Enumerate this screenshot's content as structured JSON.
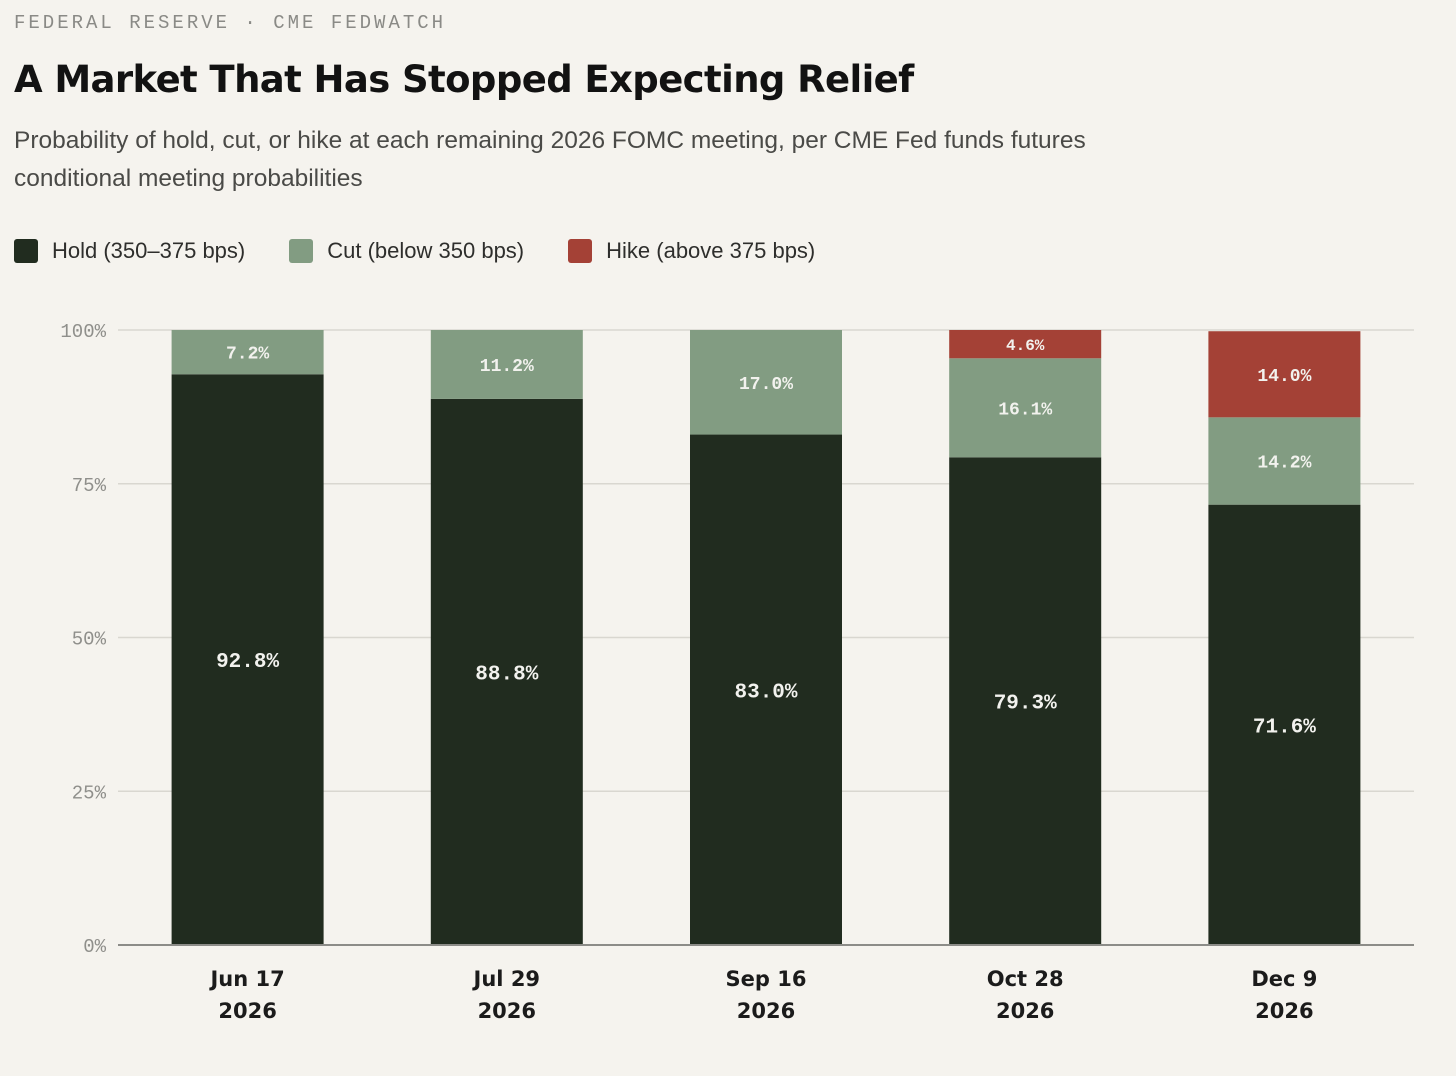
{
  "header": {
    "kicker": "FEDERAL RESERVE · CME FEDWATCH",
    "title": "A Market That Has Stopped Expecting Relief",
    "subtitle": "Probability of hold, cut, or hike at each remaining 2026 FOMC meeting, per CME Fed funds futures conditional meeting probabilities"
  },
  "chart_data": {
    "type": "bar",
    "stacked": true,
    "title": "A Market That Has Stopped Expecting Relief",
    "categories": [
      [
        "Jun 17",
        "2026"
      ],
      [
        "Jul 29",
        "2026"
      ],
      [
        "Sep 16",
        "2026"
      ],
      [
        "Oct 28",
        "2026"
      ],
      [
        "Dec 9",
        "2026"
      ]
    ],
    "series": [
      {
        "name": "Hold (350–375 bps)",
        "color": "#212c1f",
        "values": [
          92.8,
          88.8,
          83.0,
          79.3,
          71.6
        ]
      },
      {
        "name": "Cut (below 350 bps)",
        "color": "#829c82",
        "values": [
          7.2,
          11.2,
          17.0,
          16.1,
          14.2
        ]
      },
      {
        "name": "Hike (above 375 bps)",
        "color": "#a44136",
        "values": [
          0,
          0,
          0,
          4.6,
          14.0
        ]
      }
    ],
    "ylim": [
      0,
      100
    ],
    "yticks": [
      0,
      25,
      50,
      75,
      100
    ],
    "ytick_suffix": "%",
    "value_suffix": "%",
    "grid": true,
    "legend_position": "top-left",
    "xlabel": "",
    "ylabel": ""
  }
}
